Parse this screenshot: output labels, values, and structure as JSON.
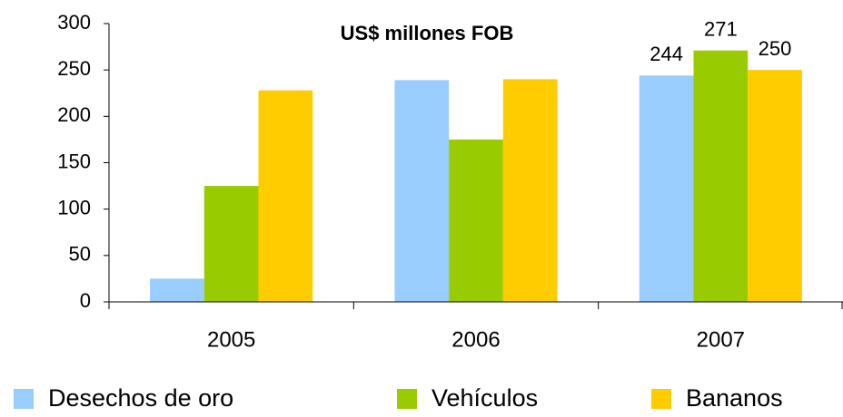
{
  "chart_data": {
    "type": "bar",
    "title": "US$ millones FOB",
    "categories": [
      "2005",
      "2006",
      "2007"
    ],
    "series": [
      {
        "name": "Desechos de oro",
        "color": "#99ccff",
        "values": [
          25,
          239,
          244
        ],
        "value_labels": [
          null,
          null,
          "244"
        ]
      },
      {
        "name": "Vehículos",
        "color": "#99cc00",
        "values": [
          125,
          175,
          271
        ],
        "value_labels": [
          null,
          null,
          "271"
        ]
      },
      {
        "name": "Bananos",
        "color": "#ffcc00",
        "values": [
          228,
          240,
          250
        ],
        "value_labels": [
          null,
          null,
          "250"
        ]
      }
    ],
    "ylim": [
      0,
      300
    ],
    "yticks": [
      0,
      50,
      100,
      150,
      200,
      250,
      300
    ],
    "grid": false,
    "legend": "bottom"
  }
}
